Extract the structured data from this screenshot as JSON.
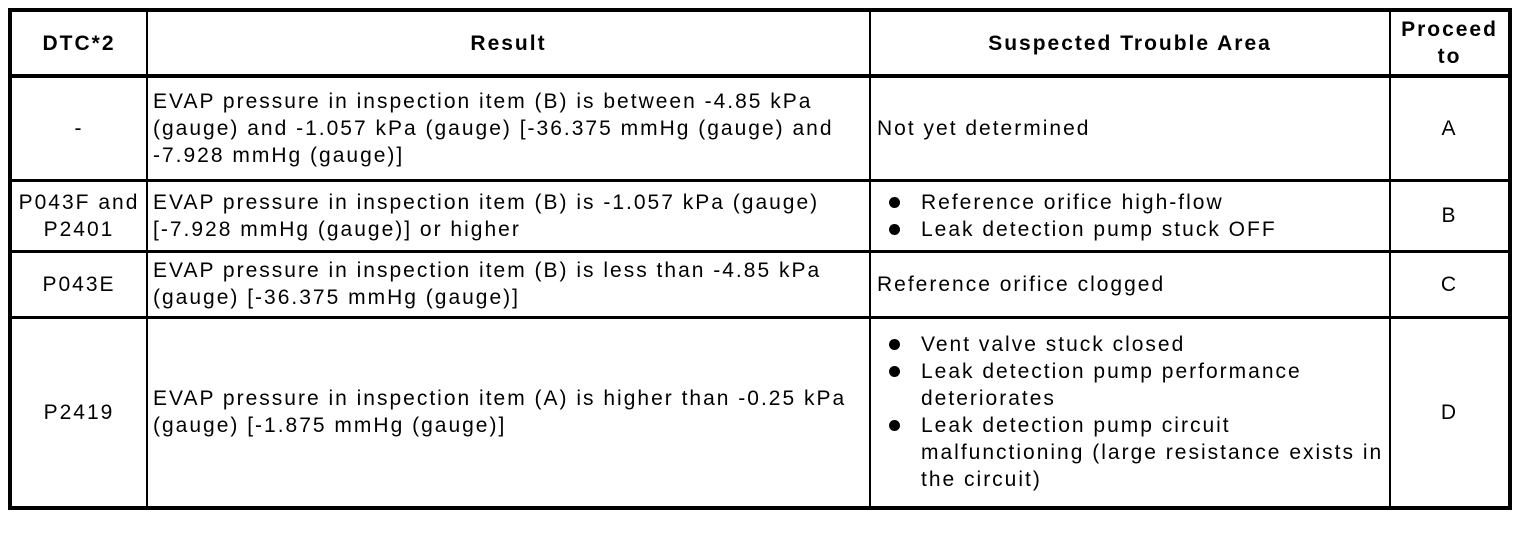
{
  "colors": {
    "background": "#ffffff",
    "border": "#000000",
    "text": "#000000"
  },
  "table": {
    "headers": [
      "DTC*2",
      "Result",
      "Suspected Trouble Area",
      "Proceed to"
    ],
    "rows": [
      {
        "dtc": "-",
        "result": "EVAP pressure in inspection item (B) is between -4.85 kPa (gauge) and -1.057 kPa (gauge) [-36.375 mmHg (gauge) and -7.928 mmHg (gauge)]",
        "trouble_text": "Not yet determined",
        "proceed": "A"
      },
      {
        "dtc": "P043F and P2401",
        "result": "EVAP pressure in inspection item (B) is -1.057 kPa (gauge) [-7.928 mmHg (gauge)] or higher",
        "trouble_items": [
          "Reference orifice high-flow",
          "Leak detection pump stuck OFF"
        ],
        "proceed": "B"
      },
      {
        "dtc": "P043E",
        "result": "EVAP pressure in inspection item (B) is less than -4.85 kPa (gauge) [-36.375 mmHg (gauge)]",
        "trouble_text": "Reference orifice clogged",
        "proceed": "C"
      },
      {
        "dtc": "P2419",
        "result": "EVAP pressure in inspection item (A) is higher than -0.25 kPa (gauge) [-1.875 mmHg (gauge)]",
        "trouble_items": [
          "Vent valve stuck closed",
          "Leak detection pump performance deteriorates",
          "Leak detection pump circuit malfunctioning (large resistance exists in the circuit)"
        ],
        "proceed": "D"
      }
    ]
  }
}
